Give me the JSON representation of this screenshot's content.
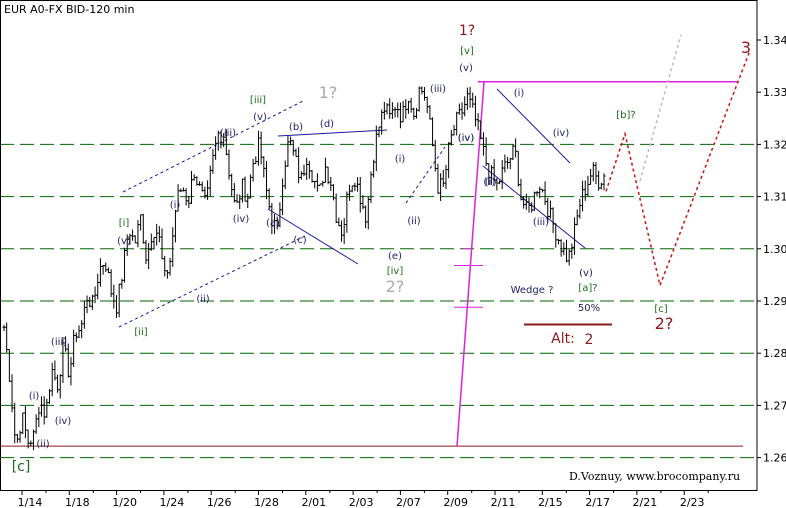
{
  "title": "EUR A0-FX BID-120 min",
  "credit": "D.Voznuy,  www.brocompany.ru",
  "colors": {
    "grid": "#006600",
    "price": "#000000",
    "channel": "#1a1aa0",
    "magenta": "#dd22dd",
    "projection_red": "#cc1111",
    "projection_gray": "#bbbbbb",
    "support_line": "#8b1a1a",
    "count_navy": "#222266",
    "count_green": "#1a6b1a",
    "count_gray": "#aaaaaa",
    "count_red": "#8b1a1a"
  },
  "chart_data": {
    "type": "candlestick",
    "ylim": [
      1.255,
      1.345
    ],
    "yticks": [
      "1.34",
      "1.33",
      "1.32",
      "1.31",
      "1.30",
      "1.29",
      "1.28",
      "1.27",
      "1.26"
    ],
    "grid_levels": [
      1.32,
      1.31,
      1.3,
      1.29,
      1.28,
      1.27,
      1.26
    ],
    "xticks": [
      "1/14",
      "1/18",
      "1/20",
      "1/24",
      "1/26",
      "1/28",
      "2/01",
      "2/03",
      "2/07",
      "2/09",
      "2/11",
      "2/15",
      "2/17",
      "2/21",
      "2/23"
    ],
    "price_path": [
      [
        1.285,
        1.275,
        1.262,
        1.268,
        1.263,
        1.264,
        1.271,
        1.268,
        1.277,
        1.274,
        1.281,
        1.276,
        1.284,
        1.285,
        1.291,
        1.289,
        1.296,
        1.298,
        1.292,
        1.289,
        1.296,
        1.304,
        1.301,
        1.306,
        1.298,
        1.304,
        1.303,
        1.294,
        1.298,
        1.309,
        1.312,
        1.309,
        1.315,
        1.311,
        1.308,
        1.316,
        1.322
      ],
      [
        1.322,
        1.314,
        1.307,
        1.312,
        1.31,
        1.317,
        1.32,
        1.312,
        1.306,
        1.303,
        1.315,
        1.321,
        1.317,
        1.313,
        1.318,
        1.314,
        1.31,
        1.316,
        1.313,
        1.306,
        1.303,
        1.312,
        1.314,
        1.31,
        1.306,
        1.317,
        1.323,
        1.327,
        1.325,
        1.328,
        1.325,
        1.33,
        1.326,
        1.331,
        1.329,
        1.321,
        1.312
      ],
      [
        1.312,
        1.32,
        1.324,
        1.326,
        1.329,
        1.326,
        1.322,
        1.317,
        1.314,
        1.312,
        1.315,
        1.317,
        1.319,
        1.31,
        1.307,
        1.309,
        1.313,
        1.31,
        1.306,
        1.303,
        1.3,
        1.298,
        1.303,
        1.309,
        1.312,
        1.315,
        1.313,
        1.314
      ]
    ],
    "candle_count": 225,
    "lines": {
      "magenta_vertical": {
        "from": [
          1.262,
          1.332
        ],
        "note": "spike line"
      },
      "magenta_horizontal": 1.332,
      "bottom_line": 1.2622,
      "support_alt": 1.2855,
      "magenta_marks": [
        1.2968,
        1.2888
      ]
    },
    "projection": {
      "red_path": [
        1.311,
        1.322,
        1.293,
        1.338
      ],
      "gray_path": [
        1.313,
        1.341
      ]
    },
    "annotations": [
      {
        "text": "[c]",
        "color": "green"
      },
      {
        "text": "(i)",
        "color": "navy"
      },
      {
        "text": "(ii)",
        "color": "navy"
      },
      {
        "text": "(iii)",
        "color": "navy"
      },
      {
        "text": "(iv)",
        "color": "navy"
      },
      {
        "text": "(v)",
        "color": "navy"
      },
      {
        "text": "[i]",
        "color": "green"
      },
      {
        "text": "(i)",
        "color": "navy"
      },
      {
        "text": "(ii)",
        "color": "navy"
      },
      {
        "text": "[ii]",
        "color": "green"
      },
      {
        "text": "(iii)",
        "color": "navy"
      },
      {
        "text": "(iv)",
        "color": "navy"
      },
      {
        "text": "(v)",
        "color": "navy"
      },
      {
        "text": "[iii]",
        "color": "green"
      },
      {
        "text": "1?",
        "color": "gray"
      },
      {
        "text": "(a)",
        "color": "navy"
      },
      {
        "text": "(b)",
        "color": "navy"
      },
      {
        "text": "(c)",
        "color": "navy"
      },
      {
        "text": "(d)",
        "color": "navy"
      },
      {
        "text": "(e)",
        "color": "navy"
      },
      {
        "text": "[iv]",
        "color": "green"
      },
      {
        "text": "2?",
        "color": "gray"
      },
      {
        "text": "(i)",
        "color": "navy"
      },
      {
        "text": "(ii)",
        "color": "navy"
      },
      {
        "text": "(iii)",
        "color": "navy"
      },
      {
        "text": "(iv)",
        "color": "navy"
      },
      {
        "text": "(v)",
        "color": "navy"
      },
      {
        "text": "[v]",
        "color": "green"
      },
      {
        "text": "1?",
        "color": "red"
      },
      {
        "text": "(i)",
        "color": "navy"
      },
      {
        "text": "(ii)",
        "color": "navy"
      },
      {
        "text": "(iii)",
        "color": "navy"
      },
      {
        "text": "(iv)",
        "color": "navy"
      },
      {
        "text": "(v)",
        "color": "navy"
      },
      {
        "text": "(i)",
        "color": "navy"
      },
      {
        "text": "(iv)",
        "color": "navy"
      },
      {
        "text": "Wedge ?",
        "color": "navy"
      },
      {
        "text": "[a]?",
        "color": "green"
      },
      {
        "text": "50%",
        "color": "navy"
      },
      {
        "text": "Alt:",
        "color": "red"
      },
      {
        "text": "2",
        "color": "red"
      },
      {
        "text": "[b]?",
        "color": "green"
      },
      {
        "text": "[c]",
        "color": "green"
      },
      {
        "text": "2?",
        "color": "red"
      },
      {
        "text": "3",
        "color": "red"
      }
    ]
  }
}
